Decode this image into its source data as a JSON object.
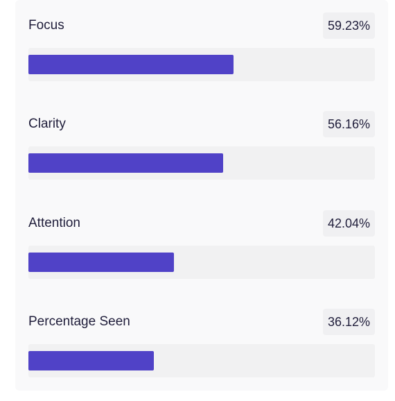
{
  "metrics": [
    {
      "label": "Focus",
      "value_text": "59.23%",
      "percent": 59.23
    },
    {
      "label": "Clarity",
      "value_text": "56.16%",
      "percent": 56.16
    },
    {
      "label": "Attention",
      "value_text": "42.04%",
      "percent": 42.04
    },
    {
      "label": "Percentage Seen",
      "value_text": "36.12%",
      "percent": 36.12
    }
  ],
  "colors": {
    "bar_fill": "#5042c7",
    "track": "#f1f1f2",
    "card_background": "#f9f9fa",
    "text": "#1f1d3a"
  }
}
